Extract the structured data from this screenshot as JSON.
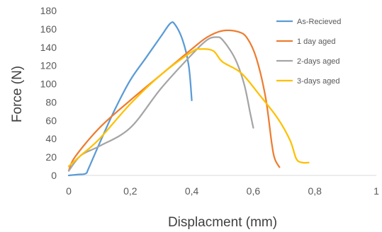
{
  "chart_data": {
    "type": "line",
    "title": "",
    "xlabel": "Displacment (mm)",
    "ylabel": "Force (N)",
    "xlim": [
      0,
      1
    ],
    "ylim": [
      0,
      180
    ],
    "x_ticks": [
      0,
      0.2,
      0.4,
      0.6,
      0.8,
      1
    ],
    "x_tick_labels": [
      "0",
      "0,2",
      "0,4",
      "0,6",
      "0,8",
      "1"
    ],
    "y_ticks": [
      0,
      20,
      40,
      60,
      80,
      100,
      120,
      140,
      160,
      180
    ],
    "y_tick_labels": [
      "0",
      "20",
      "40",
      "60",
      "80",
      "100",
      "120",
      "140",
      "160",
      "180"
    ],
    "grid": false,
    "legend_position": "top-right",
    "series": [
      {
        "name": "As-Recieved",
        "color": "#5B9BD5",
        "points": [
          [
            0,
            0
          ],
          [
            0.03,
            1
          ],
          [
            0.055,
            2
          ],
          [
            0.065,
            8
          ],
          [
            0.1,
            35
          ],
          [
            0.15,
            72
          ],
          [
            0.2,
            104
          ],
          [
            0.25,
            128
          ],
          [
            0.3,
            152
          ],
          [
            0.33,
            166
          ],
          [
            0.345,
            165
          ],
          [
            0.37,
            148
          ],
          [
            0.39,
            120
          ],
          [
            0.4,
            82
          ]
        ]
      },
      {
        "name": "1 day aged",
        "color": "#ED7D31",
        "points": [
          [
            0,
            5
          ],
          [
            0.02,
            20
          ],
          [
            0.1,
            52
          ],
          [
            0.2,
            82
          ],
          [
            0.3,
            110
          ],
          [
            0.4,
            138
          ],
          [
            0.45,
            151
          ],
          [
            0.5,
            158
          ],
          [
            0.55,
            157
          ],
          [
            0.58,
            150
          ],
          [
            0.61,
            128
          ],
          [
            0.64,
            85
          ],
          [
            0.66,
            35
          ],
          [
            0.67,
            18
          ],
          [
            0.685,
            9
          ]
        ]
      },
      {
        "name": "2-days aged",
        "color": "#A5A5A5",
        "points": [
          [
            0,
            5
          ],
          [
            0.04,
            22
          ],
          [
            0.1,
            32
          ],
          [
            0.2,
            52
          ],
          [
            0.3,
            95
          ],
          [
            0.4,
            132
          ],
          [
            0.45,
            148
          ],
          [
            0.48,
            151
          ],
          [
            0.5,
            148
          ],
          [
            0.54,
            128
          ],
          [
            0.57,
            100
          ],
          [
            0.59,
            68
          ],
          [
            0.6,
            52
          ]
        ]
      },
      {
        "name": "3-days aged",
        "color": "#FFC000",
        "points": [
          [
            0,
            10
          ],
          [
            0.04,
            22
          ],
          [
            0.1,
            40
          ],
          [
            0.2,
            78
          ],
          [
            0.3,
            110
          ],
          [
            0.4,
            135
          ],
          [
            0.43,
            138
          ],
          [
            0.47,
            136
          ],
          [
            0.5,
            124
          ],
          [
            0.56,
            112
          ],
          [
            0.62,
            88
          ],
          [
            0.68,
            62
          ],
          [
            0.72,
            38
          ],
          [
            0.74,
            18
          ],
          [
            0.76,
            14
          ],
          [
            0.78,
            14
          ]
        ]
      }
    ]
  }
}
